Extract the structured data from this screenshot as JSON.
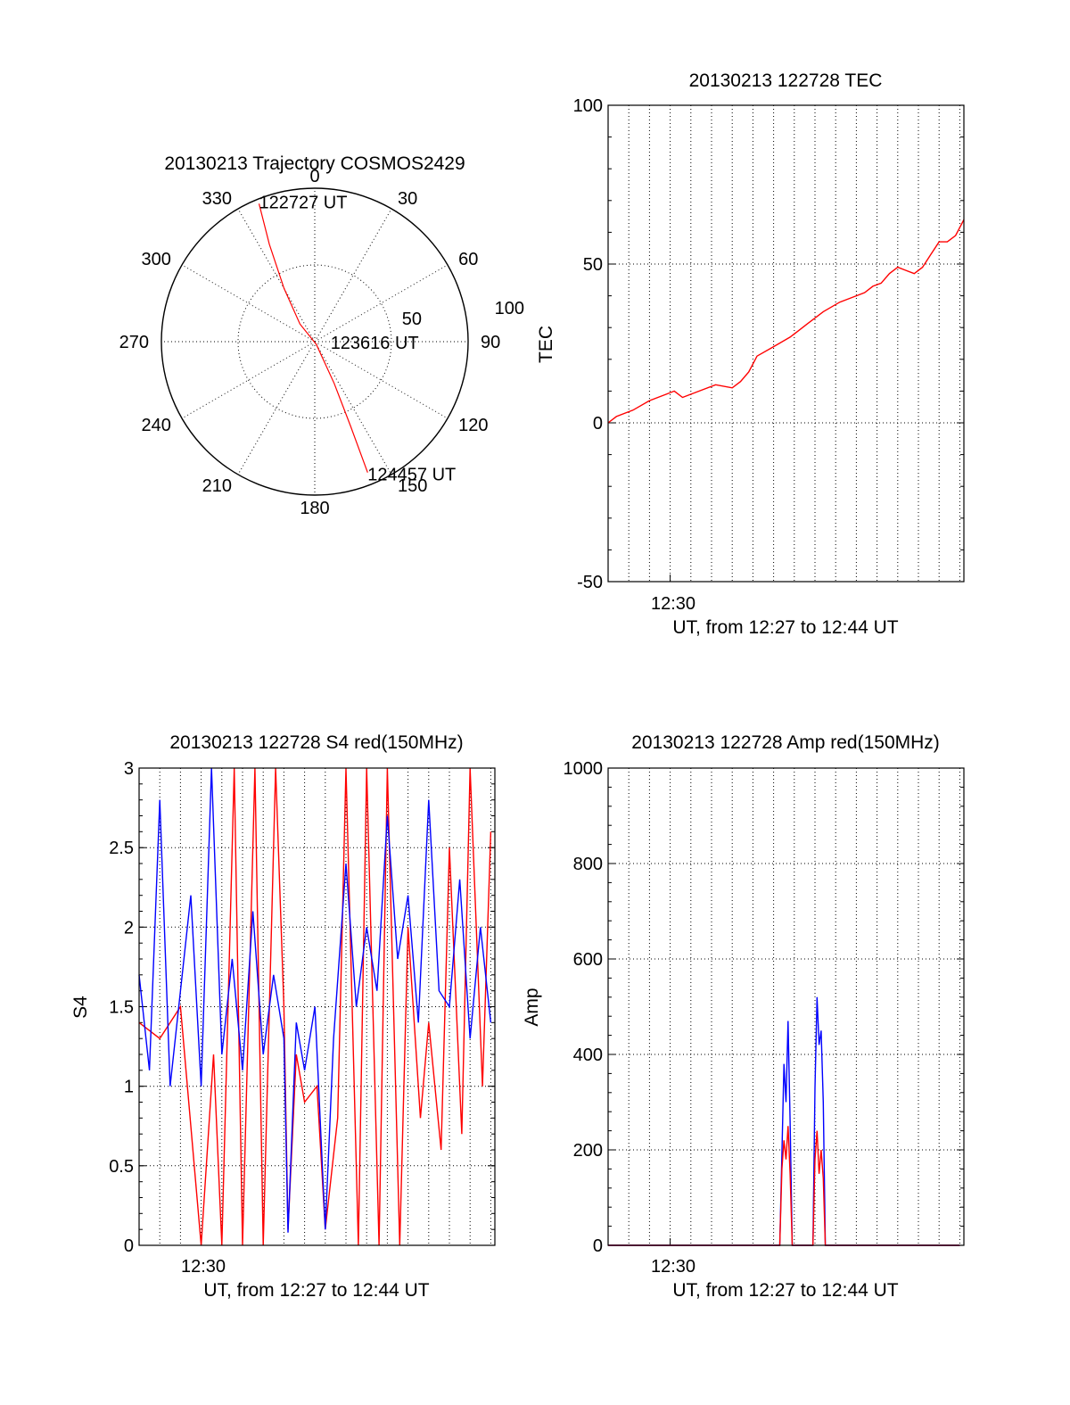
{
  "colors": {
    "red": "#ff0000",
    "blue": "#0000ff",
    "axis": "#000000",
    "background": "#ffffff"
  },
  "chart_data": [
    {
      "type": "polar",
      "title": "20130213 Trajectory COSMOS2429",
      "azimuth_labels": [
        "0",
        "30",
        "60",
        "90",
        "120",
        "150",
        "180",
        "210",
        "240",
        "270",
        "300",
        "330"
      ],
      "radial_labels": [
        "50",
        "100"
      ],
      "points": [
        {
          "label": "122727 UT",
          "azimuth_deg": 338,
          "radius": 97
        },
        {
          "label": "123616 UT",
          "azimuth_deg": 150,
          "radius": 2
        },
        {
          "label": "124457 UT",
          "azimuth_deg": 158,
          "radius": 92
        }
      ],
      "series": [
        {
          "color": "red",
          "trajectory": [
            [
              338,
              97
            ],
            [
              335,
              70
            ],
            [
              330,
              40
            ],
            [
              320,
              15
            ],
            [
              150,
              2
            ],
            [
              155,
              30
            ],
            [
              157,
              60
            ],
            [
              158,
              92
            ]
          ]
        }
      ]
    },
    {
      "type": "line",
      "title": "20130213 122728 TEC",
      "ylabel": "TEC",
      "xlabel": "UT, from 12:27 to 12:44 UT",
      "xtick_label": "12:30",
      "x_range": [
        "12:27",
        "12:44"
      ],
      "yticks": [
        "-50",
        "0",
        "50",
        "100"
      ],
      "ylim": [
        -50,
        100
      ],
      "grid": true,
      "series": [
        {
          "color": "red",
          "x_min": [
            0.0,
            0.4,
            1.2,
            2.0,
            2.8,
            3.2,
            3.6,
            4.4,
            5.2,
            6.0,
            6.4,
            6.8,
            7.2,
            8.0,
            8.8,
            9.2,
            9.6,
            10.4,
            11.2,
            12.0,
            12.4,
            12.8,
            13.2,
            13.6,
            14.0,
            14.4,
            14.8,
            15.2,
            15.6,
            16.0,
            16.4,
            16.8,
            17.2
          ],
          "values": [
            0,
            2,
            4,
            7,
            9,
            10,
            8,
            10,
            12,
            11,
            13,
            16,
            21,
            24,
            27,
            29,
            31,
            35,
            38,
            40,
            41,
            43,
            44,
            47,
            49,
            48,
            47,
            49,
            53,
            57,
            57,
            59,
            64
          ]
        }
      ]
    },
    {
      "type": "line",
      "title": "20130213 122728 S4 red(150MHz)",
      "ylabel": "S4",
      "xlabel": "UT, from 12:27 to 12:44 UT",
      "xtick_label": "12:30",
      "x_range": [
        "12:27",
        "12:44"
      ],
      "yticks": [
        "0",
        "0.5",
        "1",
        "1.5",
        "2",
        "2.5",
        "3"
      ],
      "ylim": [
        0,
        3
      ],
      "grid": true,
      "series": [
        {
          "color": "red",
          "x_min": [
            0.0,
            1.0,
            2.0,
            3.0,
            3.6,
            4.0,
            4.6,
            5.0,
            5.6,
            6.0,
            6.6,
            7.0,
            7.2,
            7.6,
            8.0,
            8.6,
            9.0,
            9.6,
            10.0,
            10.6,
            11.0,
            11.6,
            12.0,
            12.6,
            13.0,
            13.6,
            14.0,
            14.6,
            15.0,
            15.6,
            16.0,
            16.6,
            17.0
          ],
          "values": [
            1.4,
            1.3,
            1.5,
            0,
            1.2,
            0,
            3,
            0,
            3,
            0,
            3,
            1.5,
            0.1,
            1.2,
            0.9,
            1.0,
            0.1,
            0.8,
            3,
            0,
            3,
            0,
            3,
            0,
            2.0,
            0.8,
            1.4,
            0.6,
            2.5,
            0.7,
            3,
            1.0,
            2.6
          ]
        },
        {
          "color": "blue",
          "x_min": [
            0.0,
            0.5,
            1.0,
            1.5,
            2.0,
            2.5,
            3.0,
            3.5,
            4.0,
            4.5,
            5.0,
            5.5,
            6.0,
            6.5,
            7.0,
            7.2,
            7.6,
            8.0,
            8.5,
            9.0,
            9.4,
            10.0,
            10.5,
            11.0,
            11.5,
            12.0,
            12.5,
            13.0,
            13.5,
            14.0,
            14.5,
            15.0,
            15.5,
            16.0,
            16.5,
            17.0
          ],
          "values": [
            1.7,
            1.1,
            2.8,
            1.0,
            1.6,
            2.2,
            1.0,
            3.0,
            1.2,
            1.8,
            1.1,
            2.1,
            1.2,
            1.7,
            1.3,
            0.08,
            1.4,
            1.1,
            1.5,
            0.1,
            1.3,
            2.4,
            1.5,
            2.0,
            1.6,
            2.7,
            1.8,
            2.2,
            1.4,
            2.8,
            1.6,
            1.5,
            2.3,
            1.3,
            2.0,
            1.4
          ]
        }
      ]
    },
    {
      "type": "line",
      "title": "20130213 122728 Amp red(150MHz)",
      "ylabel": "Amp",
      "xlabel": "UT, from 12:27 to 12:44 UT",
      "xtick_label": "12:30",
      "x_range": [
        "12:27",
        "12:44"
      ],
      "yticks": [
        "0",
        "200",
        "400",
        "600",
        "800",
        "1000"
      ],
      "ylim": [
        0,
        1000
      ],
      "grid": true,
      "series": [
        {
          "color": "blue",
          "x_min": [
            0.0,
            8.3,
            8.4,
            8.5,
            8.6,
            8.7,
            8.8,
            8.9,
            9.0,
            9.9,
            10.0,
            10.1,
            10.2,
            10.3,
            10.4,
            10.5,
            17.0
          ],
          "values": [
            0,
            0,
            190,
            380,
            300,
            470,
            260,
            0,
            0,
            0,
            330,
            520,
            420,
            450,
            300,
            0,
            0
          ]
        },
        {
          "color": "red",
          "x_min": [
            0.0,
            8.3,
            8.4,
            8.5,
            8.6,
            8.7,
            8.8,
            8.9,
            9.0,
            9.9,
            10.0,
            10.1,
            10.2,
            10.3,
            10.4,
            10.5,
            17.0
          ],
          "values": [
            0,
            0,
            160,
            220,
            180,
            250,
            150,
            0,
            0,
            0,
            180,
            240,
            150,
            200,
            140,
            0,
            0
          ]
        }
      ]
    }
  ]
}
